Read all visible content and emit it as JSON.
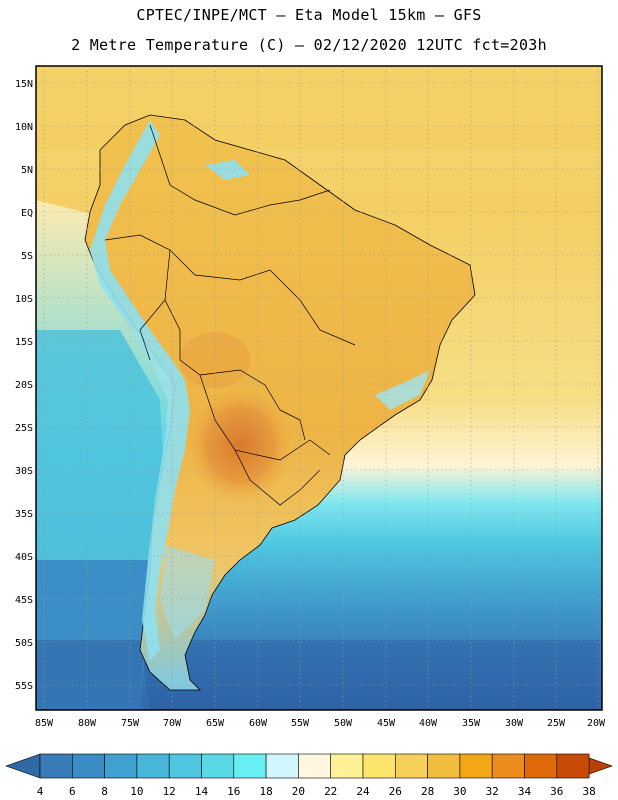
{
  "title": {
    "line1": "CPTEC/INPE/MCT –  Eta Model 15km – GFS",
    "line2": "2 Metre Temperature (C) – 02/12/2020 12UTC fct=203h"
  },
  "lat_labels": [
    "15N",
    "10N",
    "5N",
    "EQ",
    "5S",
    "10S",
    "15S",
    "20S",
    "25S",
    "30S",
    "35S",
    "40S",
    "45S",
    "50S",
    "55S"
  ],
  "lon_labels": [
    "85W",
    "80W",
    "75W",
    "70W",
    "65W",
    "60W",
    "55W",
    "50W",
    "45W",
    "40W",
    "35W",
    "30W",
    "25W",
    "20W"
  ],
  "colorbar": {
    "labels": [
      "4",
      "6",
      "8",
      "10",
      "12",
      "14",
      "16",
      "18",
      "20",
      "22",
      "24",
      "26",
      "28",
      "30",
      "32",
      "34",
      "36",
      "38"
    ],
    "colors": [
      "#3a7cb8",
      "#3b8cc4",
      "#3fa1cf",
      "#47b6d8",
      "#4fc6df",
      "#59d8e6",
      "#66f0f2",
      "#d0f6ff",
      "#fff7e0",
      "#fff296",
      "#fde56b",
      "#f6d058",
      "#f0bd3c",
      "#f3a715",
      "#ec8c1c",
      "#e06a0a",
      "#c74a07"
    ],
    "low_end_color": "#2f6aa6",
    "high_end_color": "#b8410a"
  },
  "palette": {
    "ocean_deep": "#2e62a6",
    "ocean_mid": "#3f98cc",
    "ocean_light": "#58d4e4",
    "ocean_warm": "#f3cf62",
    "land": "#f1bf52",
    "land_hot": "#e9993a",
    "andes": "#7fd9ef",
    "border": "#000000"
  }
}
